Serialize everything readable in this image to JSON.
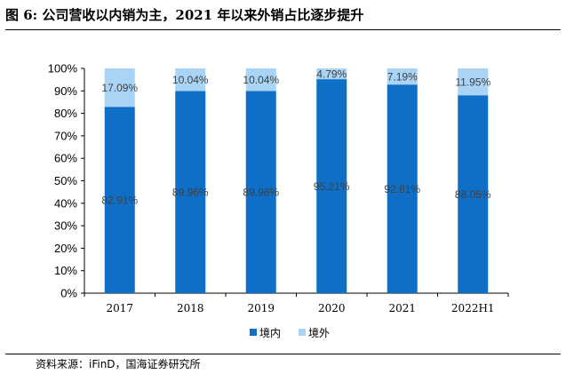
{
  "title": "图 6:  公司营收以内销为主，2021 年以来外销占比逐步提升",
  "source": "资料来源：iFinD，国海证券研究所",
  "chart_data": {
    "type": "bar",
    "stacked": true,
    "categories": [
      "2017",
      "2018",
      "2019",
      "2020",
      "2021",
      "2022H1"
    ],
    "series": [
      {
        "name": "境内",
        "color": "#0f6fc6",
        "values": [
          82.91,
          89.96,
          89.96,
          95.21,
          92.81,
          88.05
        ],
        "labels": [
          "82.91%",
          "89.96%",
          "89.96%",
          "95.21%",
          "92.81%",
          "88.05%"
        ]
      },
      {
        "name": "境外",
        "color": "#a9d4f5",
        "values": [
          17.09,
          10.04,
          10.04,
          4.79,
          7.19,
          11.95
        ],
        "labels": [
          "17.09%",
          "10.04%",
          "10.04%",
          "4.79%",
          "7.19%",
          "11.95%"
        ]
      }
    ],
    "ylim": [
      0,
      100
    ],
    "yticks": [
      "0%",
      "10%",
      "20%",
      "30%",
      "40%",
      "50%",
      "60%",
      "70%",
      "80%",
      "90%",
      "100%"
    ],
    "grid": false,
    "legend": "bottom"
  }
}
